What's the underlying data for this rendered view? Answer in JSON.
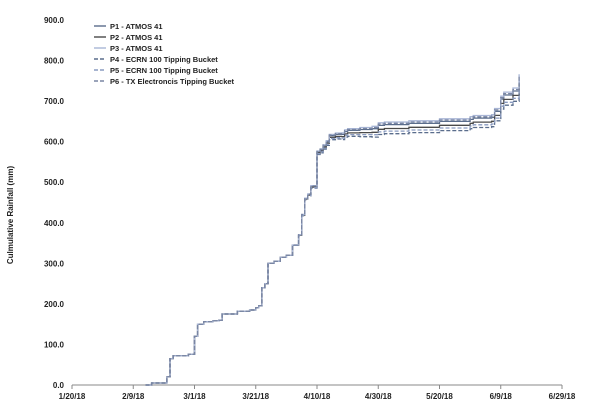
{
  "chart_data": {
    "type": "line",
    "title": "",
    "xlabel": "",
    "ylabel": "Culmulative Rainfall (mm)",
    "ylim": [
      0,
      900
    ],
    "y_ticks": [
      "0.0",
      "100.0",
      "200.0",
      "300.0",
      "400.0",
      "500.0",
      "600.0",
      "700.0",
      "800.0",
      "900.0"
    ],
    "x_ticks": [
      "1/20/18",
      "2/9/18",
      "3/1/18",
      "3/21/18",
      "4/10/18",
      "4/30/18",
      "5/20/18",
      "6/9/18",
      "6/29/18"
    ],
    "x_tick_day_offsets": [
      0,
      20,
      40,
      60,
      80,
      100,
      120,
      140,
      160
    ],
    "xlim_days": [
      0,
      160
    ],
    "grid": false,
    "legend_position": "top-left",
    "base_profile": {
      "day": [
        24,
        26,
        30,
        31,
        32,
        33,
        34,
        38,
        40,
        41,
        43,
        46,
        48,
        49,
        54,
        58,
        60,
        61,
        62,
        63,
        64,
        66,
        68,
        70,
        72,
        74,
        75,
        76,
        77,
        78,
        80,
        81,
        82,
        83,
        84,
        86,
        88,
        89,
        90,
        94,
        98,
        100,
        102,
        110,
        120,
        130,
        131,
        137,
        138,
        140,
        141,
        144,
        146
      ],
      "value": [
        0,
        5,
        5,
        20,
        65,
        72,
        72,
        76,
        120,
        150,
        156,
        158,
        160,
        175,
        182,
        185,
        190,
        195,
        240,
        250,
        300,
        305,
        315,
        320,
        345,
        370,
        420,
        460,
        470,
        490,
        575,
        580,
        590,
        600,
        615,
        618,
        618,
        625,
        628,
        630,
        632,
        640,
        642,
        645,
        650,
        655,
        658,
        660,
        675,
        705,
        715,
        725,
        725
      ]
    },
    "series": [
      {
        "name": "P1 - ATMOS 41",
        "color": "#5a6d8c",
        "dash": "",
        "scale": 1.0,
        "final": 752
      },
      {
        "name": "P2 - ATMOS 41",
        "color": "#4a4a4a",
        "dash": "",
        "scale": 0.985,
        "final": 742
      },
      {
        "name": "P3 - ATMOS 41",
        "color": "#a9b6d6",
        "dash": "",
        "scale": 1.01,
        "final": 766
      },
      {
        "name": "P4 - ECRN 100 Tipping Bucket",
        "color": "#5a6d8c",
        "dash": "4,2",
        "scale": 0.965,
        "final": 718
      },
      {
        "name": "P5 - ECRN 100 Tipping Bucket",
        "color": "#8a9bc0",
        "dash": "4,2",
        "scale": 0.975,
        "final": 730
      },
      {
        "name": "P6 - TX Electroncis Tipping Bucket",
        "color": "#7a86a3",
        "dash": "4,2",
        "scale": 1.005,
        "final": 760
      }
    ]
  }
}
